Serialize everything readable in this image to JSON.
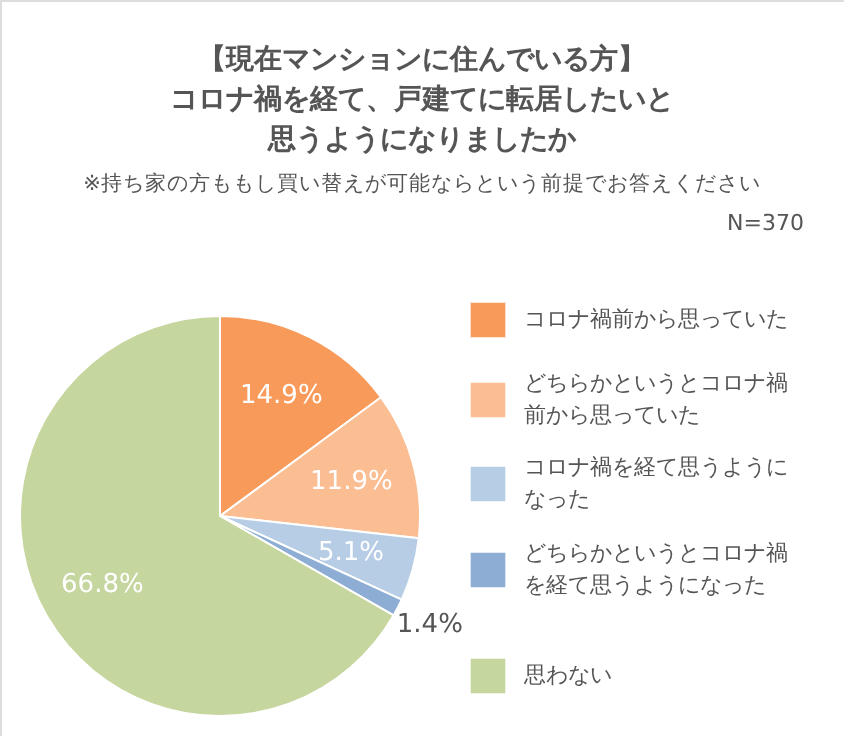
{
  "chart_data": {
    "type": "pie",
    "title": "【現在マンションに住んでいる方】コロナ禍を経て、戸建てに転居したいと思うようになりましたか",
    "subtitle": "※持ち家の方ももし買い替えが可能ならという前提でお答えください",
    "annotations": [
      "N=370"
    ],
    "categories": [
      "コロナ禍前から思っていた",
      "どちらかというとコロナ禍前から思っていた",
      "コロナ禍を経て思うようになった",
      "どちらかというとコロナ禍を経て思うようになった",
      "思わない"
    ],
    "values": [
      14.9,
      11.9,
      5.1,
      1.4,
      66.8
    ],
    "value_labels": [
      "14.9%",
      "11.9%",
      "5.1%",
      "1.4%",
      "66.8%"
    ],
    "colors": [
      "#f79a5a",
      "#fbbd92",
      "#b7cde6",
      "#8dadd4",
      "#c5d69e"
    ],
    "legend": "right"
  }
}
